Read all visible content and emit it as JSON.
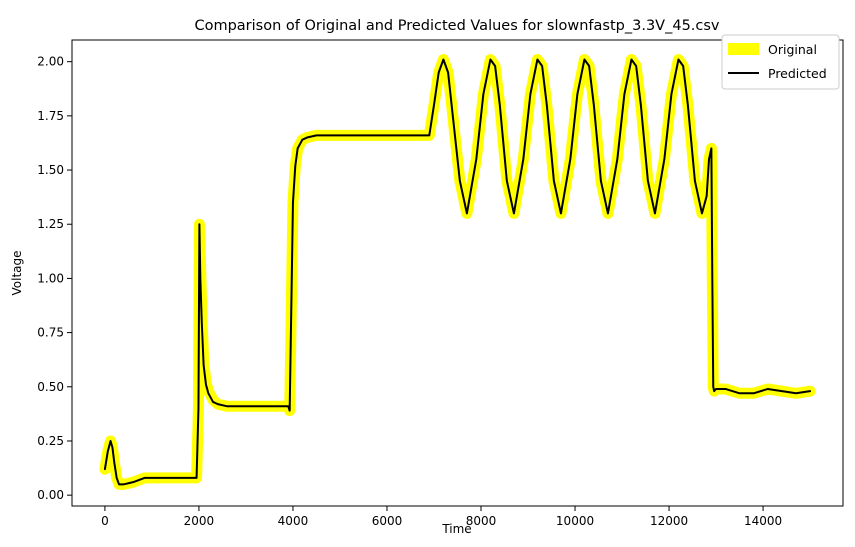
{
  "chart_data": {
    "type": "line",
    "title": "Comparison of Original and Predicted Values for slownfastp_3.3V_45.csv",
    "xlabel": "Time",
    "ylabel": "Voltage",
    "xlim": [
      -700,
      15700
    ],
    "ylim": [
      -0.05,
      2.1
    ],
    "xticks": [
      0,
      2000,
      4000,
      6000,
      8000,
      10000,
      12000,
      14000
    ],
    "yticks": [
      0.0,
      0.25,
      0.5,
      0.75,
      1.0,
      1.25,
      1.5,
      1.75,
      2.0
    ],
    "ytick_labels": [
      "0.00",
      "0.25",
      "0.50",
      "0.75",
      "1.00",
      "1.25",
      "1.50",
      "1.75",
      "2.00"
    ],
    "grid": false,
    "legend_position": "top-right",
    "series": [
      {
        "name": "Original",
        "color": "#ffff00",
        "style": "thick",
        "x": [
          0,
          60,
          120,
          160,
          200,
          250,
          300,
          400,
          600,
          850,
          1200,
          1600,
          1950,
          1990,
          2010,
          2030,
          2060,
          2100,
          2150,
          2200,
          2300,
          2400,
          2600,
          3000,
          3500,
          3900,
          3930,
          3960,
          4000,
          4050,
          4100,
          4200,
          4300,
          4500,
          5000,
          5500,
          6000,
          6500,
          6900,
          7000,
          7100,
          7200,
          7300,
          7400,
          7550,
          7700,
          7900,
          8050,
          8200,
          8300,
          8400,
          8550,
          8700,
          8900,
          9050,
          9200,
          9300,
          9400,
          9550,
          9700,
          9900,
          10050,
          10200,
          10300,
          10400,
          10550,
          10700,
          10900,
          11050,
          11200,
          11300,
          11400,
          11550,
          11700,
          11900,
          12050,
          12200,
          12300,
          12400,
          12550,
          12700,
          12800,
          12850,
          12900,
          12920,
          12940,
          12960,
          13000,
          13200,
          13500,
          13800,
          14100,
          14400,
          14700,
          15000
        ],
        "y": [
          0.12,
          0.2,
          0.25,
          0.22,
          0.15,
          0.08,
          0.05,
          0.05,
          0.06,
          0.08,
          0.08,
          0.08,
          0.08,
          0.4,
          1.25,
          1.1,
          0.85,
          0.62,
          0.52,
          0.48,
          0.44,
          0.42,
          0.41,
          0.41,
          0.41,
          0.41,
          0.39,
          0.8,
          1.35,
          1.52,
          1.6,
          1.64,
          1.65,
          1.66,
          1.66,
          1.66,
          1.66,
          1.66,
          1.66,
          1.8,
          1.95,
          2.01,
          1.95,
          1.75,
          1.45,
          1.3,
          1.55,
          1.85,
          2.01,
          1.98,
          1.8,
          1.45,
          1.3,
          1.55,
          1.85,
          2.01,
          1.98,
          1.8,
          1.45,
          1.3,
          1.55,
          1.85,
          2.01,
          1.98,
          1.8,
          1.45,
          1.3,
          1.55,
          1.85,
          2.01,
          1.98,
          1.8,
          1.45,
          1.3,
          1.55,
          1.85,
          2.01,
          1.98,
          1.8,
          1.45,
          1.3,
          1.38,
          1.55,
          1.6,
          1.0,
          0.5,
          0.48,
          0.49,
          0.49,
          0.47,
          0.47,
          0.49,
          0.48,
          0.47,
          0.48
        ]
      },
      {
        "name": "Predicted",
        "color": "#000000",
        "style": "thin",
        "x": [
          0,
          60,
          120,
          160,
          200,
          250,
          300,
          400,
          600,
          850,
          1200,
          1600,
          1950,
          1990,
          2010,
          2030,
          2060,
          2100,
          2150,
          2200,
          2300,
          2400,
          2600,
          3000,
          3500,
          3900,
          3930,
          3960,
          4000,
          4050,
          4100,
          4200,
          4300,
          4500,
          5000,
          5500,
          6000,
          6500,
          6900,
          7000,
          7100,
          7200,
          7300,
          7400,
          7550,
          7700,
          7900,
          8050,
          8200,
          8300,
          8400,
          8550,
          8700,
          8900,
          9050,
          9200,
          9300,
          9400,
          9550,
          9700,
          9900,
          10050,
          10200,
          10300,
          10400,
          10550,
          10700,
          10900,
          11050,
          11200,
          11300,
          11400,
          11550,
          11700,
          11900,
          12050,
          12200,
          12300,
          12400,
          12550,
          12700,
          12800,
          12850,
          12900,
          12920,
          12940,
          12960,
          13000,
          13200,
          13500,
          13800,
          14100,
          14400,
          14700,
          15000
        ],
        "y": [
          0.12,
          0.2,
          0.25,
          0.22,
          0.15,
          0.08,
          0.05,
          0.05,
          0.06,
          0.08,
          0.08,
          0.08,
          0.08,
          0.4,
          1.25,
          1.0,
          0.8,
          0.6,
          0.51,
          0.47,
          0.43,
          0.42,
          0.41,
          0.41,
          0.41,
          0.41,
          0.39,
          0.8,
          1.35,
          1.52,
          1.6,
          1.64,
          1.65,
          1.66,
          1.66,
          1.66,
          1.66,
          1.66,
          1.66,
          1.8,
          1.95,
          2.01,
          1.95,
          1.75,
          1.45,
          1.3,
          1.55,
          1.85,
          2.01,
          1.98,
          1.8,
          1.45,
          1.3,
          1.55,
          1.85,
          2.01,
          1.98,
          1.8,
          1.45,
          1.3,
          1.55,
          1.85,
          2.01,
          1.98,
          1.8,
          1.45,
          1.3,
          1.55,
          1.85,
          2.01,
          1.98,
          1.8,
          1.45,
          1.3,
          1.55,
          1.85,
          2.01,
          1.98,
          1.8,
          1.45,
          1.3,
          1.38,
          1.55,
          1.6,
          1.0,
          0.5,
          0.48,
          0.49,
          0.49,
          0.47,
          0.47,
          0.49,
          0.48,
          0.47,
          0.48
        ]
      }
    ]
  }
}
